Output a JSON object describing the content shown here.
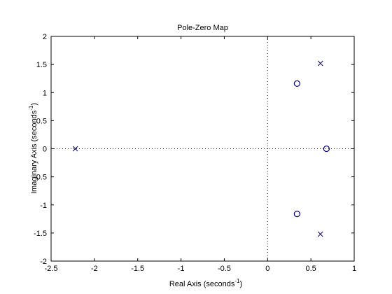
{
  "chart_data": {
    "type": "scatter",
    "title": "Pole-Zero Map",
    "xlabel": "Real Axis (seconds",
    "xlabel_sup": "-1",
    "xlabel_close": ")",
    "ylabel": "Imaginary Axis (seconds",
    "ylabel_sup": "-1",
    "ylabel_close": ")",
    "xlim": [
      -2.5,
      1
    ],
    "ylim": [
      -2,
      2
    ],
    "xticks": [
      -2.5,
      -2,
      -1.5,
      -1,
      -0.5,
      0,
      0.5,
      1
    ],
    "xtick_labels": [
      "-2.5",
      "-2",
      "-1.5",
      "-1",
      "-0.5",
      "0",
      "0.5",
      "1"
    ],
    "yticks": [
      -2,
      -1.5,
      -1,
      -0.5,
      0,
      0.5,
      1,
      1.5,
      2
    ],
    "ytick_labels": [
      "-2",
      "-1.5",
      "-1",
      "-0.5",
      "0",
      "0.5",
      "1",
      "1.5",
      "2"
    ],
    "grid": false,
    "reference_lines": [
      "x=0 dotted",
      "y=0 dotted"
    ],
    "marker_color": "#000080",
    "series": [
      {
        "marker": "x",
        "points": [
          {
            "x": -2.22,
            "y": 0
          },
          {
            "x": 0.61,
            "y": 1.52
          },
          {
            "x": 0.61,
            "y": -1.52
          }
        ]
      },
      {
        "marker": "o",
        "points": [
          {
            "x": 0.34,
            "y": 1.16
          },
          {
            "x": 0.34,
            "y": -1.16
          },
          {
            "x": 0.68,
            "y": 0
          }
        ]
      }
    ]
  }
}
